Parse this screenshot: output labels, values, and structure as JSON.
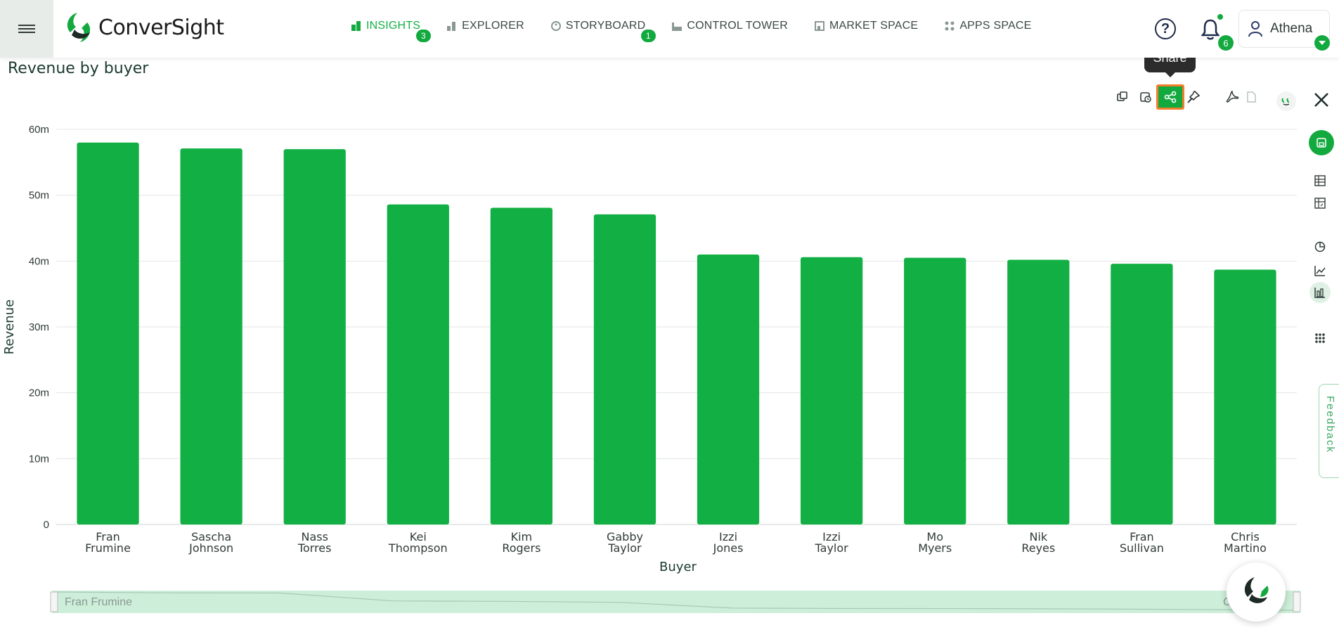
{
  "app": {
    "brand": "ConverSight",
    "brand_color": "#12a93f",
    "accent_highlight": "#f07e2a"
  },
  "nav": {
    "items": [
      {
        "label": "INSIGHTS",
        "icon": "bar-chart-icon",
        "badge": "3",
        "active": true
      },
      {
        "label": "EXPLORER",
        "icon": "bar-small-icon"
      },
      {
        "label": "STORYBOARD",
        "icon": "palette-icon",
        "badge": "1"
      },
      {
        "label": "CONTROL TOWER",
        "icon": "factory-icon"
      },
      {
        "label": "MARKET SPACE",
        "icon": "store-icon"
      },
      {
        "label": "APPS SPACE",
        "icon": "grid-dots-icon"
      }
    ]
  },
  "header": {
    "notifications_count": "6",
    "user_name": "Athena"
  },
  "page": {
    "title": "Revenue by buyer"
  },
  "toolbar": {
    "share_tooltip": "Share",
    "tools": [
      "copy-icon",
      "schedule-icon",
      "share-icon",
      "pin-icon",
      "pdf-icon",
      "document-icon",
      "quote-icon"
    ]
  },
  "side_rail": {
    "icons": [
      "save-icon",
      "table-icon",
      "pivot-table-icon",
      "pie-chart-icon",
      "line-chart-icon",
      "bar-chart-icon",
      "more-grid-icon"
    ]
  },
  "feedback": {
    "label": "Feedback"
  },
  "range_slider": {
    "start_label": "Fran Frumine",
    "end_label": "Ch"
  },
  "chart_data": {
    "type": "bar",
    "title": "",
    "xlabel": "Buyer",
    "ylabel": "Revenue",
    "ylim": [
      0,
      60000000
    ],
    "yticks": [
      "0",
      "10m",
      "20m",
      "30m",
      "40m",
      "50m",
      "60m"
    ],
    "grid": true,
    "color": "#12b044",
    "categories": [
      [
        "Fran",
        "Frumine"
      ],
      [
        "Sascha",
        "Johnson"
      ],
      [
        "Nass",
        "Torres"
      ],
      [
        "Kei",
        "Thompson"
      ],
      [
        "Kim",
        "Rogers"
      ],
      [
        "Gabby",
        "Taylor"
      ],
      [
        "Izzi",
        "Jones"
      ],
      [
        "Izzi",
        "Taylor"
      ],
      [
        "Mo",
        "Myers"
      ],
      [
        "Nik",
        "Reyes"
      ],
      [
        "Fran",
        "Sullivan"
      ],
      [
        "Chris",
        "Martino"
      ]
    ],
    "values": [
      58000000,
      57100000,
      57000000,
      48600000,
      48100000,
      47100000,
      41000000,
      40600000,
      40500000,
      40200000,
      39600000,
      38700000
    ]
  }
}
